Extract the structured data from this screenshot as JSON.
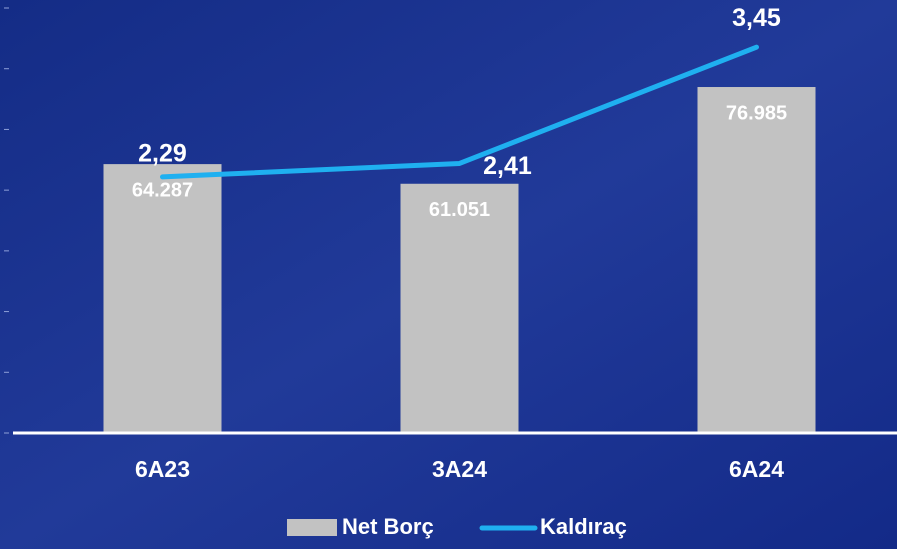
{
  "chart_data": {
    "type": "bar-line",
    "categories": [
      "6A23",
      "3A24",
      "6A24"
    ],
    "series": [
      {
        "name": "Net Borç",
        "type": "bar",
        "color": "#c2c2c2",
        "values": [
          64287,
          61051,
          76985
        ],
        "value_labels": [
          "64.287",
          "61.051",
          "76.985"
        ]
      },
      {
        "name": "Kaldıraç",
        "type": "line",
        "axis": "y2",
        "color": "#1fb0f0",
        "values": [
          2.29,
          2.41,
          3.45
        ],
        "value_labels": [
          "2,29",
          "2,41",
          "3,45"
        ]
      }
    ],
    "ylim": [
      20000,
      90000
    ],
    "yticks": [
      20000,
      30000,
      40000,
      50000,
      60000,
      70000,
      80000,
      90000
    ],
    "y2lim": [
      0,
      3.8
    ]
  }
}
